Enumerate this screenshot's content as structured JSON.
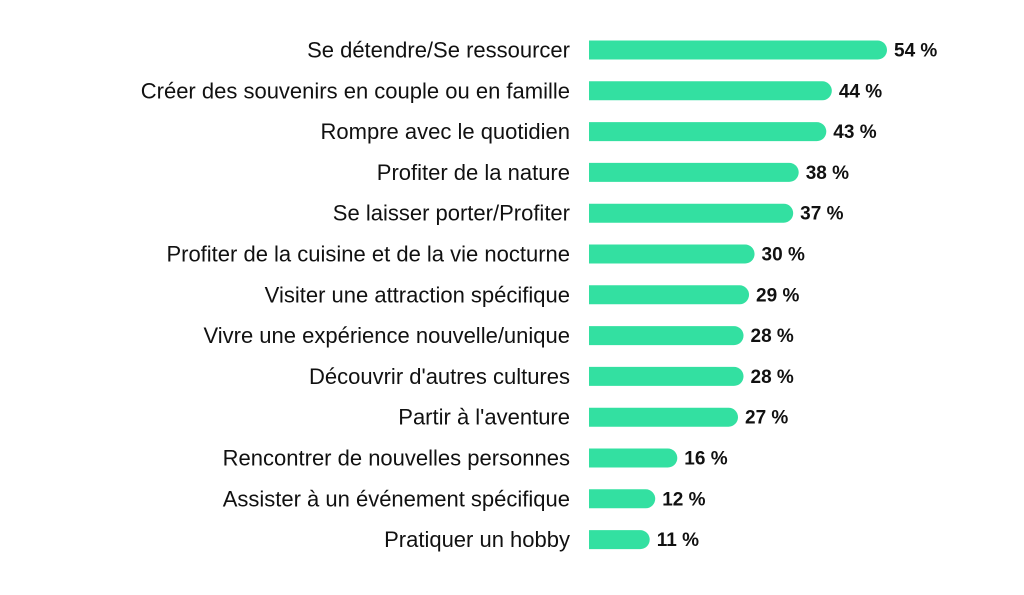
{
  "chart_data": {
    "type": "bar",
    "orientation": "horizontal",
    "categories": [
      "Se détendre/Se ressourcer",
      "Créer des souvenirs en couple ou en famille",
      "Rompre avec le quotidien",
      "Profiter de la nature",
      "Se laisser porter/Profiter",
      "Profiter de la cuisine et de la vie nocturne",
      "Visiter une attraction spécifique",
      "Vivre une expérience nouvelle/unique",
      "Découvrir d'autres cultures",
      "Partir à l'aventure",
      "Rencontrer de nouvelles personnes",
      "Assister à un événement spécifique",
      "Pratiquer un hobby"
    ],
    "values": [
      54,
      44,
      43,
      38,
      37,
      30,
      29,
      28,
      28,
      27,
      16,
      12,
      11
    ],
    "value_labels": [
      "54 %",
      "44 %",
      "43 %",
      "38 %",
      "37 %",
      "30 %",
      "29 %",
      "28 %",
      "28 %",
      "27 %",
      "16 %",
      "12 %",
      "11 %"
    ],
    "unit": "%",
    "title": "",
    "xlabel": "",
    "ylabel": "",
    "xlim": [
      0,
      54
    ],
    "grid": false,
    "legend": "none",
    "bar_color": "#33e0a1"
  }
}
